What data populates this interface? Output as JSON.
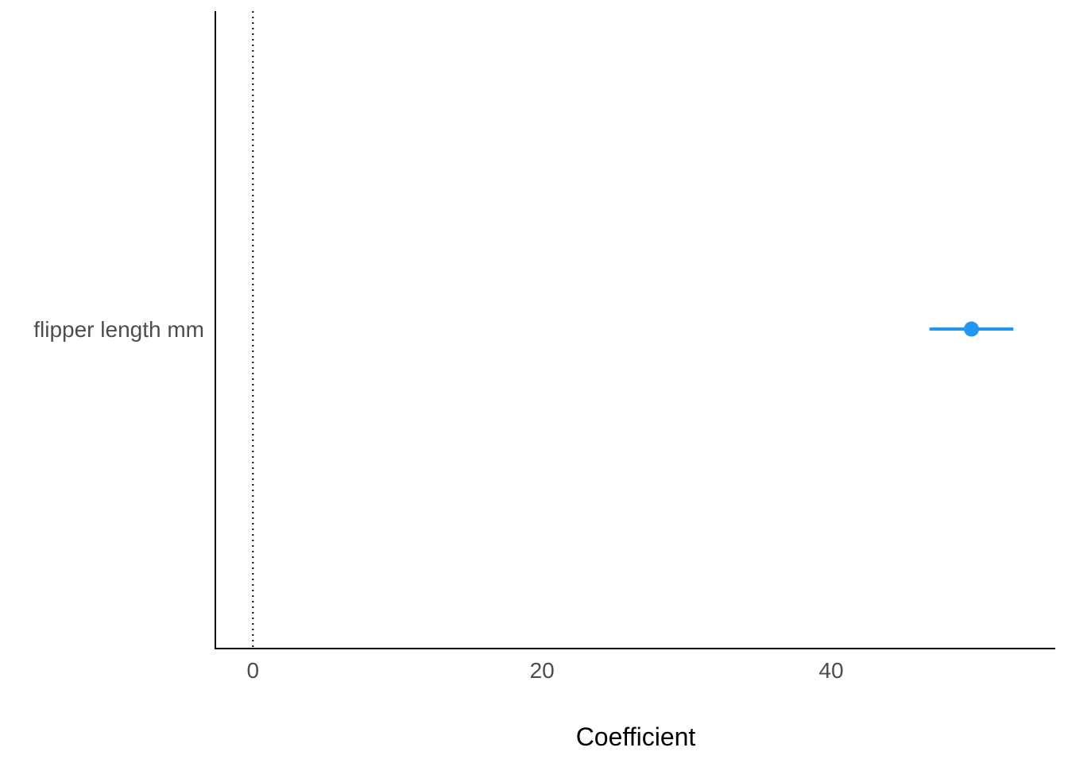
{
  "chart_data": {
    "type": "scatter",
    "title": "",
    "xlabel": "Coefficient",
    "ylabel": "",
    "xlim": [
      -2.6,
      55.5
    ],
    "x_ticks": [
      0,
      20,
      40
    ],
    "x_tick_labels": [
      "0",
      "20",
      "40"
    ],
    "reference_line": 0,
    "grid": false,
    "points": [
      {
        "term": "flipper length mm",
        "estimate": 49.7,
        "conf_low": 46.8,
        "conf_high": 52.6
      }
    ],
    "colors": {
      "point": "#2196F3",
      "axis": "#000000",
      "reference_line": "#000000"
    }
  }
}
